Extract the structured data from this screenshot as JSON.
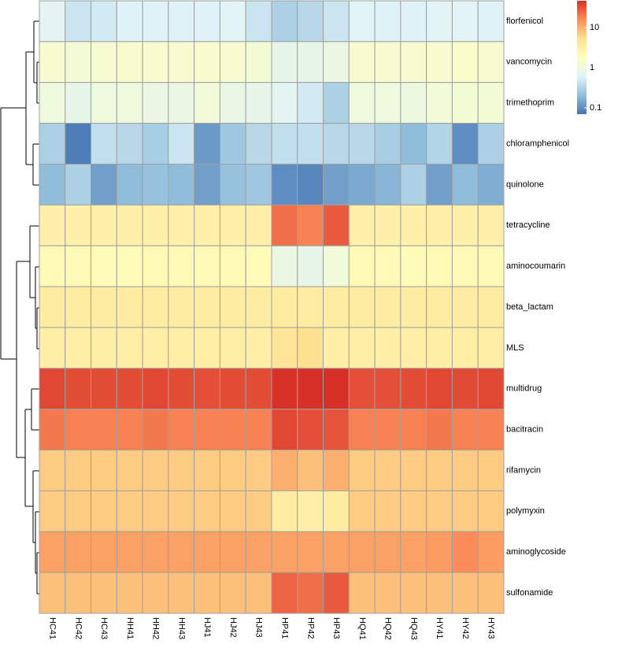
{
  "chart_data": {
    "type": "heatmap",
    "columns": [
      "HC41",
      "HC42",
      "HC43",
      "HH41",
      "HH42",
      "HH43",
      "HJ41",
      "HJ42",
      "HJ43",
      "HP41",
      "HP42",
      "HP43",
      "HQ41",
      "HQ42",
      "HQ43",
      "HY41",
      "HY42",
      "HY43"
    ],
    "rows": [
      "florfenicol",
      "vancomycin",
      "trimethoprim",
      "chloramphenicol",
      "quinolone",
      "tetracycline",
      "aminocoumarin",
      "beta_lactam",
      "MLS",
      "multidrug",
      "bacitracin",
      "rifamycin",
      "polymyxin",
      "aminoglycoside",
      "sulfonamide"
    ],
    "values": [
      [
        0.7,
        0.45,
        0.5,
        0.6,
        0.6,
        0.6,
        0.6,
        0.65,
        0.45,
        0.3,
        0.35,
        0.45,
        0.65,
        0.6,
        0.6,
        0.65,
        0.65,
        0.6
      ],
      [
        1.3,
        1.2,
        1.3,
        1.4,
        1.3,
        1.3,
        1.4,
        1.3,
        1.2,
        0.8,
        0.8,
        0.9,
        1.3,
        1.3,
        1.3,
        1.3,
        1.5,
        1.3
      ],
      [
        1.0,
        0.8,
        1.0,
        1.0,
        0.9,
        0.9,
        1.1,
        0.85,
        0.8,
        0.7,
        0.5,
        0.3,
        1.0,
        1.0,
        0.95,
        1.1,
        1.2,
        1.2
      ],
      [
        0.3,
        0.08,
        0.4,
        0.35,
        0.28,
        0.45,
        0.12,
        0.25,
        0.35,
        0.4,
        0.4,
        0.35,
        0.35,
        0.28,
        0.2,
        0.32,
        0.1,
        0.3
      ],
      [
        0.2,
        0.3,
        0.13,
        0.2,
        0.22,
        0.2,
        0.13,
        0.22,
        0.25,
        0.1,
        0.09,
        0.13,
        0.15,
        0.18,
        0.3,
        0.13,
        0.2,
        0.16
      ],
      [
        3,
        3,
        3,
        3,
        3,
        3,
        3,
        3,
        3,
        22,
        18,
        28,
        3,
        3,
        3,
        3,
        3,
        3
      ],
      [
        2.2,
        2.2,
        2.0,
        2.0,
        2.2,
        2.2,
        2.2,
        2.2,
        2.0,
        0.9,
        0.8,
        1.1,
        2.2,
        2.2,
        2.0,
        2.2,
        2.2,
        2.2
      ],
      [
        3.5,
        3.5,
        3.5,
        3.5,
        3.5,
        3.5,
        3.5,
        3.5,
        3.5,
        3.5,
        3.5,
        3.5,
        3.5,
        3.5,
        3.5,
        3.5,
        3.5,
        3.5
      ],
      [
        3.2,
        3.2,
        3.2,
        3.2,
        3.2,
        3.2,
        3.2,
        3.2,
        3.2,
        4.5,
        5,
        3.2,
        3.2,
        3.2,
        3.2,
        3.2,
        3.2,
        3.2
      ],
      [
        35,
        33,
        33,
        33,
        35,
        33,
        32,
        33,
        33,
        45,
        48,
        47,
        32,
        32,
        33,
        35,
        34,
        35
      ],
      [
        20,
        18,
        18,
        18,
        20,
        18,
        18,
        18,
        18,
        35,
        32,
        30,
        18,
        18,
        18,
        20,
        18,
        18
      ],
      [
        7,
        7,
        7,
        7,
        7,
        7,
        7,
        7,
        7,
        10,
        8,
        10,
        7,
        7,
        7,
        7,
        7,
        7
      ],
      [
        7,
        7,
        7,
        7,
        7,
        7,
        7,
        7,
        7,
        3.5,
        3,
        3.5,
        7,
        7,
        7,
        7,
        7,
        7
      ],
      [
        12,
        12,
        12,
        12,
        12,
        12,
        12,
        12,
        12,
        12,
        12,
        12,
        12,
        12,
        12,
        13,
        16,
        13
      ],
      [
        8,
        8,
        8,
        8,
        8,
        8,
        8,
        8,
        8,
        25,
        22,
        28,
        8,
        8,
        8,
        8,
        8,
        8
      ]
    ],
    "log_scale": true,
    "clim": [
      0.07,
      46
    ],
    "legend_ticks": [
      0.1,
      1,
      10
    ],
    "colors": [
      "#4575b4",
      "#91bfdb",
      "#e0f3f8",
      "#ffffbf",
      "#fee090",
      "#fc8d59",
      "#d73027"
    ],
    "cell_border": "#a0a0a0"
  }
}
